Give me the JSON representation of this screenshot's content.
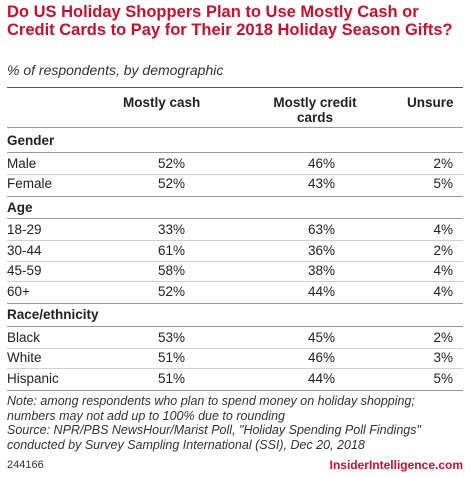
{
  "title": "Do US Holiday Shoppers Plan to Use Mostly Cash or Credit Cards to Pay for Their 2018 Holiday Season Gifts?",
  "subtitle": "% of respondents, by demographic",
  "chart_data": {
    "type": "table",
    "columns": [
      "Mostly cash",
      "Mostly credit cards",
      "Unsure"
    ],
    "groups": [
      {
        "name": "Gender",
        "rows": [
          {
            "label": "Male",
            "values": [
              "52%",
              "46%",
              "2%"
            ]
          },
          {
            "label": "Female",
            "values": [
              "52%",
              "43%",
              "5%"
            ]
          }
        ]
      },
      {
        "name": "Age",
        "rows": [
          {
            "label": "18-29",
            "values": [
              "33%",
              "63%",
              "4%"
            ]
          },
          {
            "label": "30-44",
            "values": [
              "61%",
              "36%",
              "2%"
            ]
          },
          {
            "label": "45-59",
            "values": [
              "58%",
              "38%",
              "4%"
            ]
          },
          {
            "label": "60+",
            "values": [
              "52%",
              "44%",
              "4%"
            ]
          }
        ]
      },
      {
        "name": "Race/ethnicity",
        "rows": [
          {
            "label": "Black",
            "values": [
              "53%",
              "45%",
              "2%"
            ]
          },
          {
            "label": "White",
            "values": [
              "51%",
              "46%",
              "3%"
            ]
          },
          {
            "label": "Hispanic",
            "values": [
              "51%",
              "44%",
              "5%"
            ]
          }
        ]
      }
    ]
  },
  "header": {
    "col1": "Mostly cash",
    "col2_line1": "Mostly credit",
    "col2_line2": "cards",
    "col3": "Unsure"
  },
  "note": "Note: among respondents who plan to spend money on holiday shopping; numbers may not add up to 100% due to rounding",
  "source": "Source: NPR/PBS NewsHour/Marist Poll, \"Holiday Spending Poll Findings\" conducted by Survey Sampling International (SSI), Dec 20, 2018",
  "chart_id": "244166",
  "brand": "InsiderIntelligence.com",
  "colors": {
    "title": "#c8102e",
    "brand": "#c8102e"
  }
}
